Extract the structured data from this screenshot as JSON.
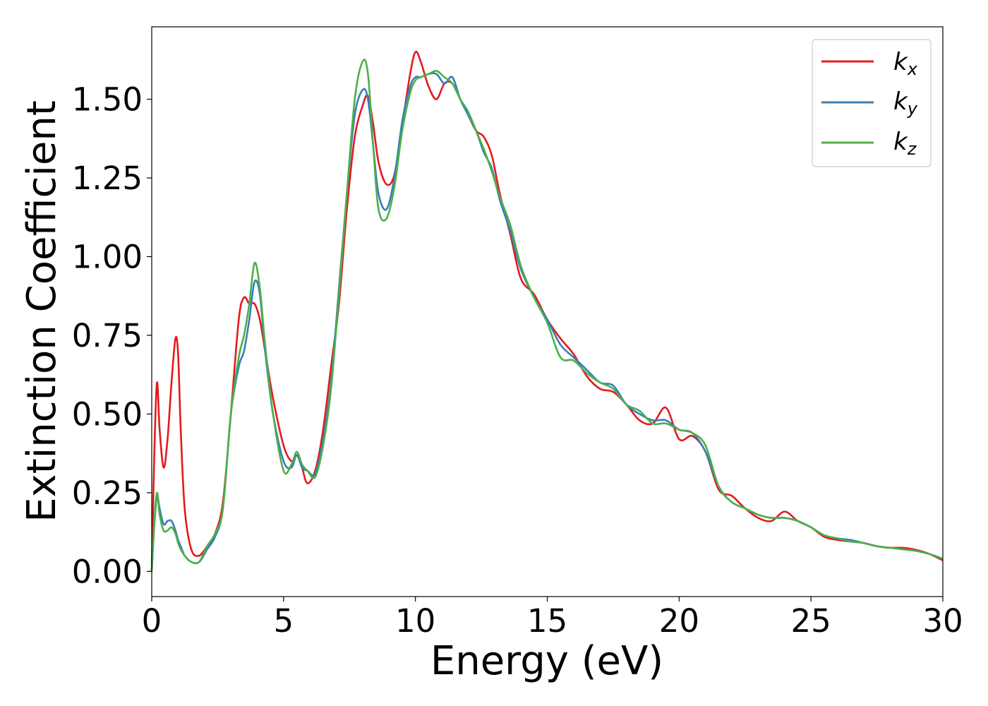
{
  "chart_data": {
    "type": "line",
    "title": "",
    "xlabel": "Energy (eV)",
    "ylabel": "Extinction Coefficient",
    "xlim": [
      0,
      30
    ],
    "ylim": [
      -0.08,
      1.73
    ],
    "xticks": [
      0,
      5,
      10,
      15,
      20,
      25,
      30
    ],
    "xtick_labels": [
      "0",
      "5",
      "10",
      "15",
      "20",
      "25",
      "30"
    ],
    "yticks": [
      0.0,
      0.25,
      0.5,
      0.75,
      1.0,
      1.25,
      1.5
    ],
    "ytick_labels": [
      "0.00",
      "0.25",
      "0.50",
      "0.75",
      "1.00",
      "1.25",
      "1.50"
    ],
    "grid": false,
    "legend_position": "top-right",
    "series": [
      {
        "name": "k_x",
        "label_main": "k",
        "label_sub": "x",
        "color": "#e41a1c",
        "x": [
          0,
          0.1,
          0.2,
          0.3,
          0.45,
          0.6,
          0.75,
          0.9,
          1.0,
          1.1,
          1.25,
          1.5,
          1.8,
          2.1,
          2.4,
          2.7,
          3.0,
          3.3,
          3.5,
          3.7,
          3.9,
          4.1,
          4.3,
          4.6,
          5.0,
          5.3,
          5.5,
          5.7,
          5.9,
          6.2,
          6.5,
          6.8,
          7.1,
          7.4,
          7.7,
          8.0,
          8.2,
          8.4,
          8.6,
          8.9,
          9.2,
          9.5,
          9.8,
          10.0,
          10.2,
          10.5,
          10.8,
          11.1,
          11.4,
          11.7,
          12.0,
          12.3,
          12.6,
          12.9,
          13.2,
          13.6,
          14.0,
          14.5,
          15.0,
          15.5,
          16.0,
          16.5,
          17.0,
          17.5,
          18.0,
          18.5,
          19.0,
          19.5,
          20.0,
          20.5,
          21.0,
          21.5,
          22.0,
          22.5,
          23.0,
          23.5,
          24.0,
          24.5,
          25.0,
          25.5,
          26.0,
          26.5,
          27.0,
          27.5,
          28.0,
          28.5,
          29.0,
          29.5,
          30.0
        ],
        "y": [
          0.0,
          0.38,
          0.6,
          0.45,
          0.33,
          0.42,
          0.6,
          0.74,
          0.69,
          0.45,
          0.2,
          0.07,
          0.05,
          0.08,
          0.12,
          0.22,
          0.5,
          0.8,
          0.87,
          0.85,
          0.85,
          0.8,
          0.7,
          0.55,
          0.4,
          0.35,
          0.37,
          0.33,
          0.28,
          0.32,
          0.45,
          0.65,
          0.85,
          1.15,
          1.38,
          1.48,
          1.51,
          1.42,
          1.3,
          1.23,
          1.26,
          1.42,
          1.58,
          1.65,
          1.62,
          1.54,
          1.5,
          1.55,
          1.55,
          1.5,
          1.45,
          1.4,
          1.38,
          1.32,
          1.2,
          1.07,
          0.93,
          0.88,
          0.8,
          0.74,
          0.69,
          0.62,
          0.58,
          0.57,
          0.53,
          0.48,
          0.47,
          0.52,
          0.42,
          0.43,
          0.38,
          0.26,
          0.24,
          0.2,
          0.17,
          0.16,
          0.19,
          0.16,
          0.14,
          0.11,
          0.1,
          0.095,
          0.09,
          0.08,
          0.075,
          0.075,
          0.068,
          0.055,
          0.035
        ]
      },
      {
        "name": "k_y",
        "label_main": "k",
        "label_sub": "y",
        "color": "#377eb8",
        "x": [
          0,
          0.1,
          0.2,
          0.3,
          0.45,
          0.6,
          0.75,
          0.9,
          1.0,
          1.1,
          1.25,
          1.5,
          1.8,
          2.1,
          2.4,
          2.7,
          3.0,
          3.3,
          3.5,
          3.7,
          3.9,
          4.1,
          4.3,
          4.6,
          5.0,
          5.3,
          5.5,
          5.7,
          5.9,
          6.2,
          6.5,
          6.8,
          7.1,
          7.4,
          7.7,
          8.0,
          8.2,
          8.4,
          8.6,
          8.9,
          9.2,
          9.5,
          9.8,
          10.0,
          10.2,
          10.5,
          10.8,
          11.1,
          11.4,
          11.7,
          12.0,
          12.3,
          12.6,
          12.9,
          13.2,
          13.6,
          14.0,
          14.5,
          15.0,
          15.5,
          16.0,
          16.5,
          17.0,
          17.5,
          18.0,
          18.5,
          19.0,
          19.5,
          20.0,
          20.5,
          21.0,
          21.5,
          22.0,
          22.5,
          23.0,
          23.5,
          24.0,
          24.5,
          25.0,
          25.5,
          26.0,
          26.5,
          27.0,
          27.5,
          28.0,
          28.5,
          29.0,
          29.5,
          30.0
        ],
        "y": [
          0.0,
          0.15,
          0.24,
          0.2,
          0.15,
          0.16,
          0.16,
          0.13,
          0.1,
          0.08,
          0.05,
          0.03,
          0.03,
          0.07,
          0.11,
          0.2,
          0.5,
          0.65,
          0.7,
          0.8,
          0.92,
          0.88,
          0.7,
          0.5,
          0.35,
          0.33,
          0.37,
          0.33,
          0.32,
          0.31,
          0.42,
          0.6,
          0.9,
          1.2,
          1.45,
          1.53,
          1.5,
          1.35,
          1.2,
          1.15,
          1.25,
          1.43,
          1.54,
          1.57,
          1.57,
          1.58,
          1.58,
          1.55,
          1.57,
          1.5,
          1.45,
          1.4,
          1.33,
          1.28,
          1.18,
          1.08,
          0.96,
          0.87,
          0.8,
          0.72,
          0.68,
          0.64,
          0.6,
          0.59,
          0.53,
          0.5,
          0.48,
          0.48,
          0.45,
          0.44,
          0.38,
          0.27,
          0.22,
          0.2,
          0.18,
          0.17,
          0.17,
          0.16,
          0.14,
          0.115,
          0.105,
          0.1,
          0.09,
          0.08,
          0.075,
          0.07,
          0.065,
          0.055,
          0.04
        ]
      },
      {
        "name": "k_z",
        "label_main": "k",
        "label_sub": "z",
        "color": "#4daf4a",
        "x": [
          0,
          0.1,
          0.2,
          0.3,
          0.45,
          0.6,
          0.75,
          0.9,
          1.0,
          1.1,
          1.25,
          1.5,
          1.8,
          2.1,
          2.4,
          2.7,
          3.0,
          3.3,
          3.5,
          3.7,
          3.9,
          4.1,
          4.3,
          4.6,
          5.0,
          5.3,
          5.5,
          5.7,
          5.9,
          6.2,
          6.5,
          6.8,
          7.1,
          7.4,
          7.7,
          8.0,
          8.2,
          8.4,
          8.6,
          8.9,
          9.2,
          9.5,
          9.8,
          10.0,
          10.2,
          10.5,
          10.8,
          11.1,
          11.4,
          11.7,
          12.0,
          12.3,
          12.6,
          12.9,
          13.2,
          13.6,
          14.0,
          14.5,
          15.0,
          15.5,
          16.0,
          16.5,
          17.0,
          17.5,
          18.0,
          18.5,
          19.0,
          19.5,
          20.0,
          20.5,
          21.0,
          21.5,
          22.0,
          22.5,
          23.0,
          23.5,
          24.0,
          24.5,
          25.0,
          25.5,
          26.0,
          26.5,
          27.0,
          27.5,
          28.0,
          28.5,
          29.0,
          29.5,
          30.0
        ],
        "y": [
          0.0,
          0.16,
          0.25,
          0.18,
          0.13,
          0.13,
          0.14,
          0.12,
          0.09,
          0.07,
          0.05,
          0.03,
          0.03,
          0.08,
          0.12,
          0.2,
          0.5,
          0.68,
          0.75,
          0.85,
          0.98,
          0.9,
          0.72,
          0.5,
          0.32,
          0.34,
          0.38,
          0.34,
          0.32,
          0.3,
          0.4,
          0.58,
          0.88,
          1.2,
          1.5,
          1.62,
          1.58,
          1.35,
          1.15,
          1.12,
          1.22,
          1.4,
          1.52,
          1.56,
          1.57,
          1.58,
          1.59,
          1.57,
          1.55,
          1.5,
          1.46,
          1.4,
          1.34,
          1.27,
          1.19,
          1.1,
          0.97,
          0.87,
          0.79,
          0.68,
          0.67,
          0.63,
          0.6,
          0.58,
          0.53,
          0.51,
          0.47,
          0.47,
          0.45,
          0.44,
          0.4,
          0.27,
          0.22,
          0.2,
          0.18,
          0.17,
          0.17,
          0.16,
          0.14,
          0.115,
          0.105,
          0.095,
          0.09,
          0.08,
          0.075,
          0.07,
          0.065,
          0.055,
          0.04
        ]
      }
    ]
  }
}
